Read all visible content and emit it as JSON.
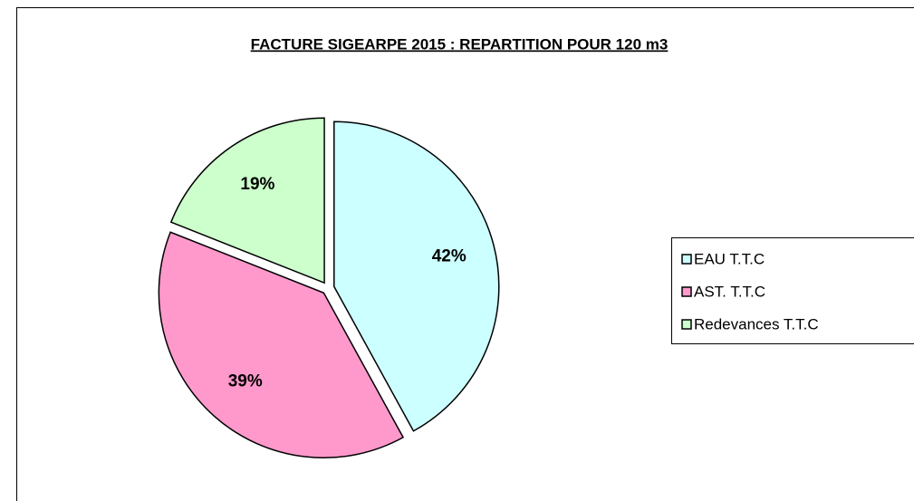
{
  "chart_data": {
    "type": "pie",
    "title": "FACTURE SIGEARPE 2015 : REPARTITION POUR 120 m3",
    "categories": [
      "EAU T.T.C",
      "AST. T.T.C",
      "Redevances T.T.C"
    ],
    "values": [
      42,
      39,
      19
    ],
    "value_labels": [
      "42%",
      "39%",
      "19%"
    ],
    "colors": [
      "#ccffff",
      "#ff99cc",
      "#ccffcc"
    ],
    "legend": "right"
  }
}
